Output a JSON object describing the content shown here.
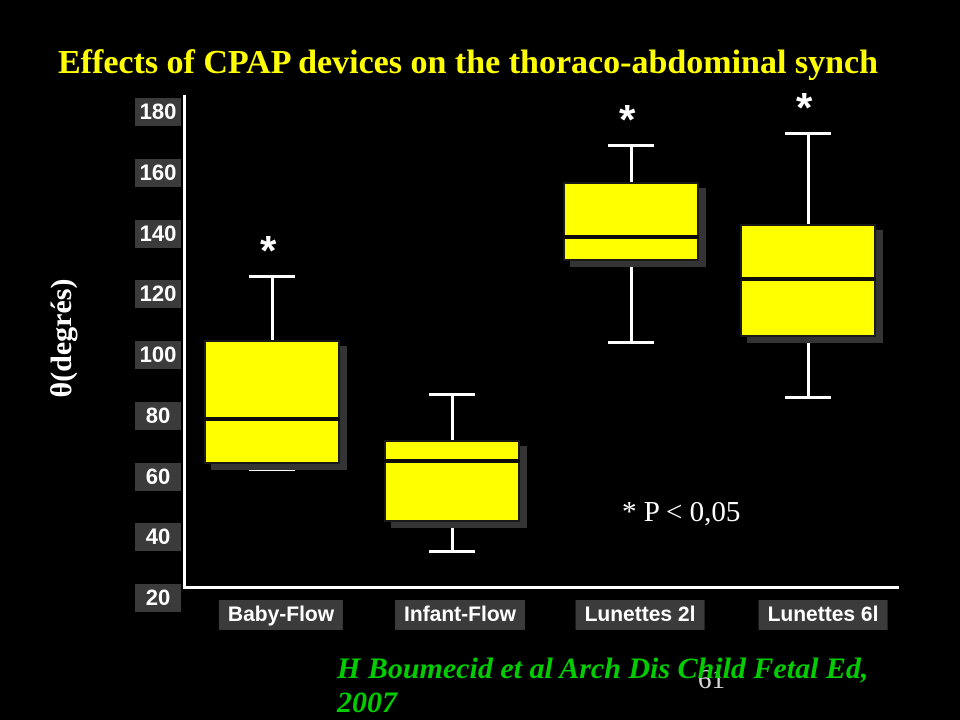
{
  "slide": {
    "background_color": "#000000",
    "title": "Effects of CPAP devices on the thoraco-abdominal synch",
    "title_color": "#ffff00",
    "significance_note": "* P < 0,05",
    "citation": {
      "line1": "H Boumecid et al Arch Dis Child Fetal Ed,",
      "line2": "2007",
      "color": "#00cc00"
    },
    "page_number": "61"
  },
  "chart_data": {
    "type": "boxplot",
    "title": "Effects of CPAP devices on the thoraco-abdominal synch",
    "ylabel": "θ(degrés)",
    "ylim": [
      20,
      180
    ],
    "yticks": [
      180,
      160,
      140,
      120,
      100,
      80,
      60,
      40,
      20
    ],
    "grid": false,
    "legend": false,
    "box_color": "#ffff00",
    "significance_marker": "*",
    "categories": [
      "Baby-Flow",
      "Infant-Flow",
      "Lunettes 2l",
      "Lunettes 6l"
    ],
    "series": [
      {
        "name": "Baby-Flow",
        "whisker_low": 62,
        "q1": 64,
        "median": 79,
        "q3": 105,
        "whisker_high": 126,
        "significant": true
      },
      {
        "name": "Infant-Flow",
        "whisker_low": 35,
        "q1": 45,
        "median": 65,
        "q3": 72,
        "whisker_high": 87,
        "significant": false
      },
      {
        "name": "Lunettes 2l",
        "whisker_low": 104,
        "q1": 131,
        "median": 139,
        "q3": 157,
        "whisker_high": 169,
        "significant": true
      },
      {
        "name": "Lunettes 6l",
        "whisker_low": 86,
        "q1": 106,
        "median": 125,
        "q3": 143,
        "whisker_high": 173,
        "significant": true
      }
    ]
  }
}
